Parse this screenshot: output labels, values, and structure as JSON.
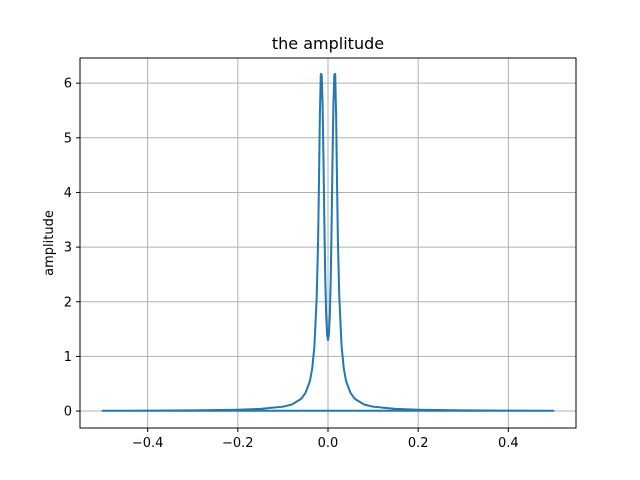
{
  "chart_data": {
    "type": "line",
    "title": "the amplitude",
    "xlabel": "",
    "ylabel": "amplitude",
    "xlim": [
      -0.55,
      0.55
    ],
    "ylim": [
      -0.31,
      6.46
    ],
    "x_ticks": [
      -0.4,
      -0.2,
      0.0,
      0.2,
      0.4
    ],
    "x_tick_labels": [
      "−0.4",
      "−0.2",
      "0.0",
      "0.2",
      "0.4"
    ],
    "y_ticks": [
      0,
      1,
      2,
      3,
      4,
      5,
      6
    ],
    "y_tick_labels": [
      "0",
      "1",
      "2",
      "3",
      "4",
      "5",
      "6"
    ],
    "grid": true,
    "series": [
      {
        "color": "#1f77b4",
        "x": [
          0.0,
          0.002,
          0.004,
          0.006,
          0.008,
          0.01,
          0.012,
          0.014,
          0.016,
          0.018,
          0.02,
          0.022,
          0.025,
          0.03,
          0.035,
          0.04,
          0.05,
          0.06,
          0.08,
          0.1,
          0.15,
          0.2,
          0.3,
          0.4,
          0.5,
          0.3,
          0.0,
          -0.3,
          -0.5,
          -0.4,
          -0.3,
          -0.2,
          -0.15,
          -0.1,
          -0.08,
          -0.06,
          -0.05,
          -0.04,
          -0.035,
          -0.03,
          -0.025,
          -0.022,
          -0.02,
          -0.018,
          -0.016,
          -0.014,
          -0.012,
          -0.01,
          -0.008,
          -0.006,
          -0.004,
          -0.002,
          0.0
        ],
        "y": [
          1.3,
          1.4,
          1.75,
          2.4,
          3.4,
          4.6,
          5.6,
          6.15,
          6.17,
          5.4,
          4.2,
          3.1,
          2.1,
          1.2,
          0.78,
          0.55,
          0.33,
          0.22,
          0.12,
          0.08,
          0.04,
          0.025,
          0.013,
          0.008,
          0.005,
          0.005,
          0.005,
          0.005,
          0.005,
          0.008,
          0.013,
          0.025,
          0.04,
          0.08,
          0.12,
          0.22,
          0.33,
          0.55,
          0.78,
          1.2,
          2.1,
          3.1,
          4.2,
          5.4,
          6.17,
          6.15,
          5.6,
          4.6,
          3.4,
          2.4,
          1.75,
          1.4,
          1.3
        ]
      }
    ]
  }
}
